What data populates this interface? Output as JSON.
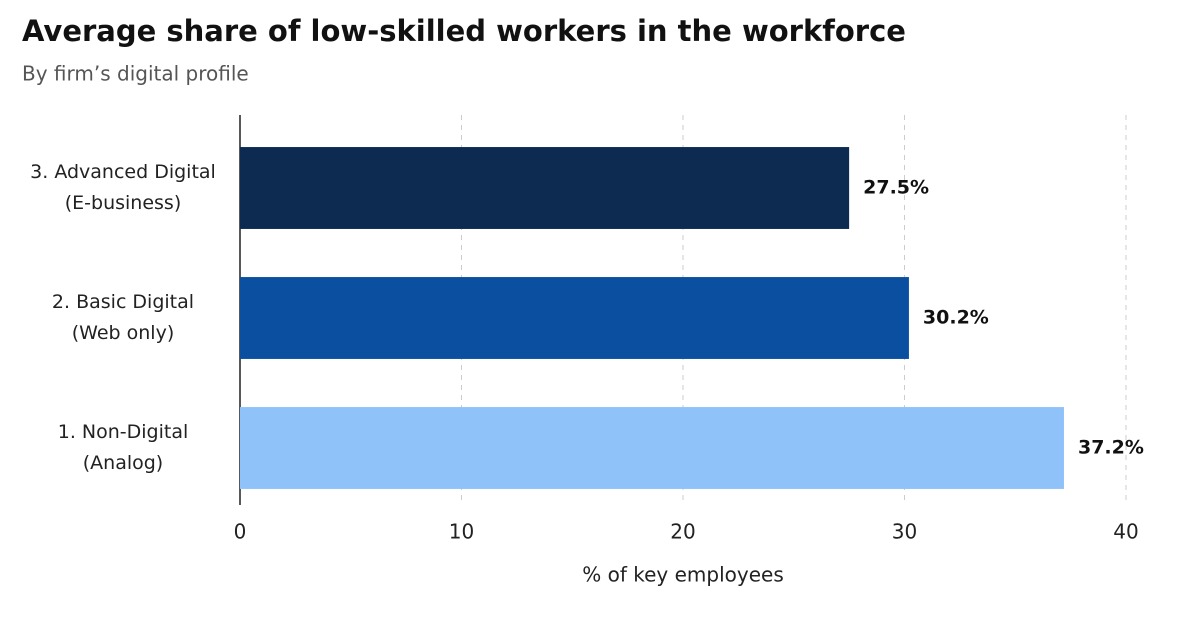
{
  "chart_data": {
    "type": "barh",
    "title": "Average share of low-skilled workers in the workforce",
    "subtitle": "By firm’s digital profile",
    "categories": [
      [
        "3. Advanced Digital",
        "(E-business)"
      ],
      [
        "2. Basic Digital",
        "(Web only)"
      ],
      [
        "1. Non-Digital",
        "(Analog)"
      ]
    ],
    "values": [
      27.5,
      30.2,
      37.2
    ],
    "value_labels": [
      "27.5%",
      "30.2%",
      "37.2%"
    ],
    "colors": [
      "#0d2a50",
      "#0a4fa0",
      "#90c2fa"
    ],
    "xlabel": "% of key employees",
    "xlim": [
      0,
      40
    ],
    "xticks": [
      0,
      10,
      20,
      30,
      40
    ],
    "grid": true
  }
}
